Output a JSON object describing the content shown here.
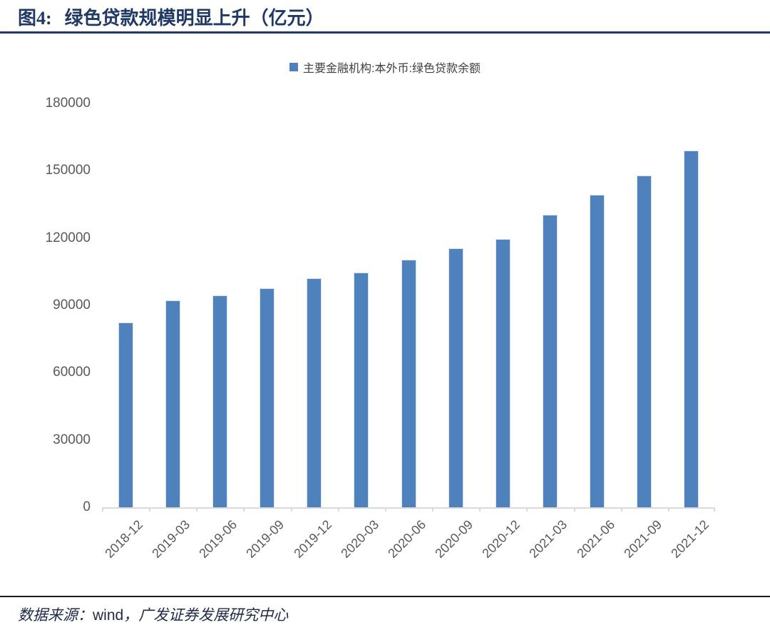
{
  "header": {
    "fig_label": "图4:",
    "title": "绿色贷款规模明显上升（亿元）"
  },
  "legend": {
    "label": "主要金融机构:本外币:绿色贷款余额"
  },
  "chart_data": {
    "type": "bar",
    "title": "图4: 绿色贷款规模明显上升（亿元）",
    "series_name": "主要金融机构:本外币:绿色贷款余额",
    "categories": [
      "2018-12",
      "2019-03",
      "2019-06",
      "2019-09",
      "2019-12",
      "2020-03",
      "2020-06",
      "2020-09",
      "2020-12",
      "2021-03",
      "2021-06",
      "2021-09",
      "2021-12"
    ],
    "values": [
      82300,
      92300,
      94600,
      97600,
      102200,
      104600,
      110200,
      115500,
      119500,
      130300,
      139200,
      147800,
      158900
    ],
    "xlabel": "",
    "ylabel": "",
    "ylim": [
      0,
      180000
    ],
    "yticks": [
      0,
      30000,
      60000,
      90000,
      120000,
      150000,
      180000
    ],
    "grid": false,
    "legend_position": "top-center",
    "bar_color": "#4F81BD"
  },
  "colors": {
    "title": "#1F3864",
    "title_rule": "#1F3864",
    "bar": "#4F81BD",
    "axis_line": "#D9D9D9",
    "tick_label": "#595959",
    "legend_text": "#404040",
    "footer_rule": "#1a1a1a",
    "footer_text": "#1F2B45"
  },
  "footer": {
    "source_label": "数据来源：",
    "source_text": "wind",
    "source_text2": "，广发证券发展研究中心"
  }
}
